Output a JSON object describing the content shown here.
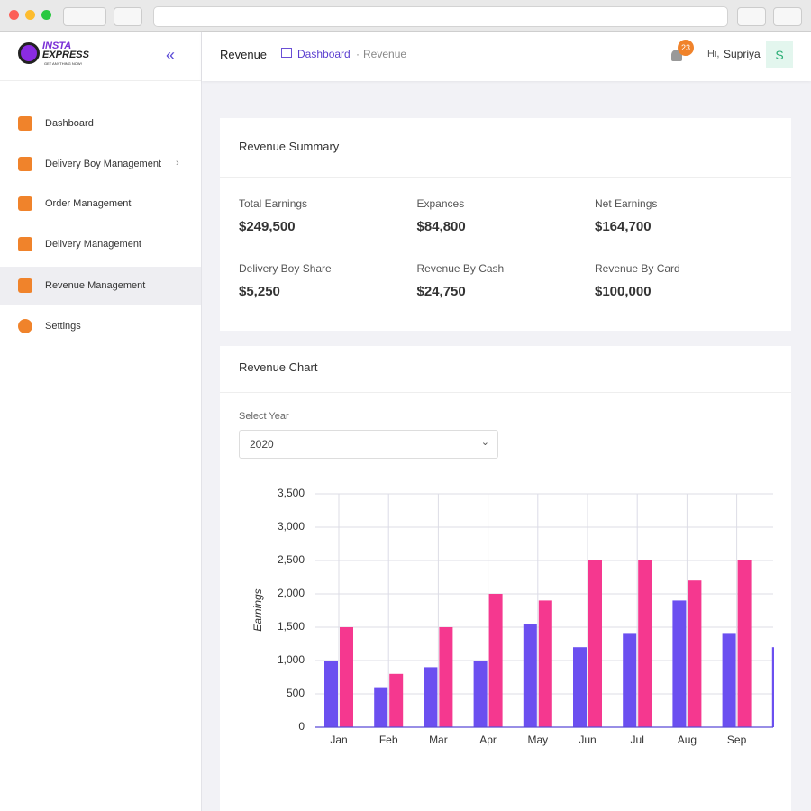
{
  "logo": {
    "line1": "INSTA",
    "line2": "EXPRESS",
    "tagline": "GET ANYTHING NOW!"
  },
  "sidebar": {
    "items": [
      "Dashboard",
      "Delivery Boy Management",
      "Order Management",
      "Delivery Management",
      "Revenue Management",
      "Settings"
    ]
  },
  "header": {
    "title": "Revenue",
    "breadcrumb": [
      "Dashboard",
      "Revenue"
    ],
    "notifications": "23",
    "greeting": "Hi,",
    "user": "Supriya",
    "avatar": "S"
  },
  "summary": {
    "title": "Revenue Summary",
    "items": [
      {
        "label": "Total Earnings",
        "value": "$249,500"
      },
      {
        "label": "Expances",
        "value": "$84,800"
      },
      {
        "label": "Net Earnings",
        "value": "$164,700"
      },
      {
        "label": "Delivery Boy Share",
        "value": "$5,250"
      },
      {
        "label": "Revenue By Cash",
        "value": "$24,750"
      },
      {
        "label": "Revenue By Card",
        "value": "$100,000"
      }
    ]
  },
  "chart_card": {
    "title": "Revenue Chart",
    "select_label": "Select Year",
    "select_value": "2020"
  },
  "chart_data": {
    "type": "bar",
    "ylabel": "Earnings",
    "categories": [
      "Jan",
      "Feb",
      "Mar",
      "Apr",
      "May",
      "Jun",
      "Jul",
      "Aug",
      "Sep",
      null
    ],
    "series": [
      {
        "color": "#6b4ff0",
        "values": [
          1000,
          600,
          900,
          1000,
          1550,
          1200,
          1400,
          1900,
          1400,
          1200
        ]
      },
      {
        "color": "#f5388f",
        "values": [
          1500,
          800,
          1500,
          2000,
          1900,
          2500,
          2500,
          2200,
          2500,
          null
        ]
      }
    ],
    "ylim": [
      0,
      3500
    ],
    "yticks": [
      0,
      500,
      {
        "value": 1000,
        "label": "1,000"
      },
      {
        "value": 1500,
        "label": "1,500"
      },
      {
        "value": 2000,
        "label": "2,000"
      },
      {
        "value": 2500,
        "label": "2,500"
      },
      {
        "value": 3000,
        "label": "3,000"
      },
      {
        "value": 3500,
        "label": "3,500"
      }
    ],
    "grid": true
  }
}
